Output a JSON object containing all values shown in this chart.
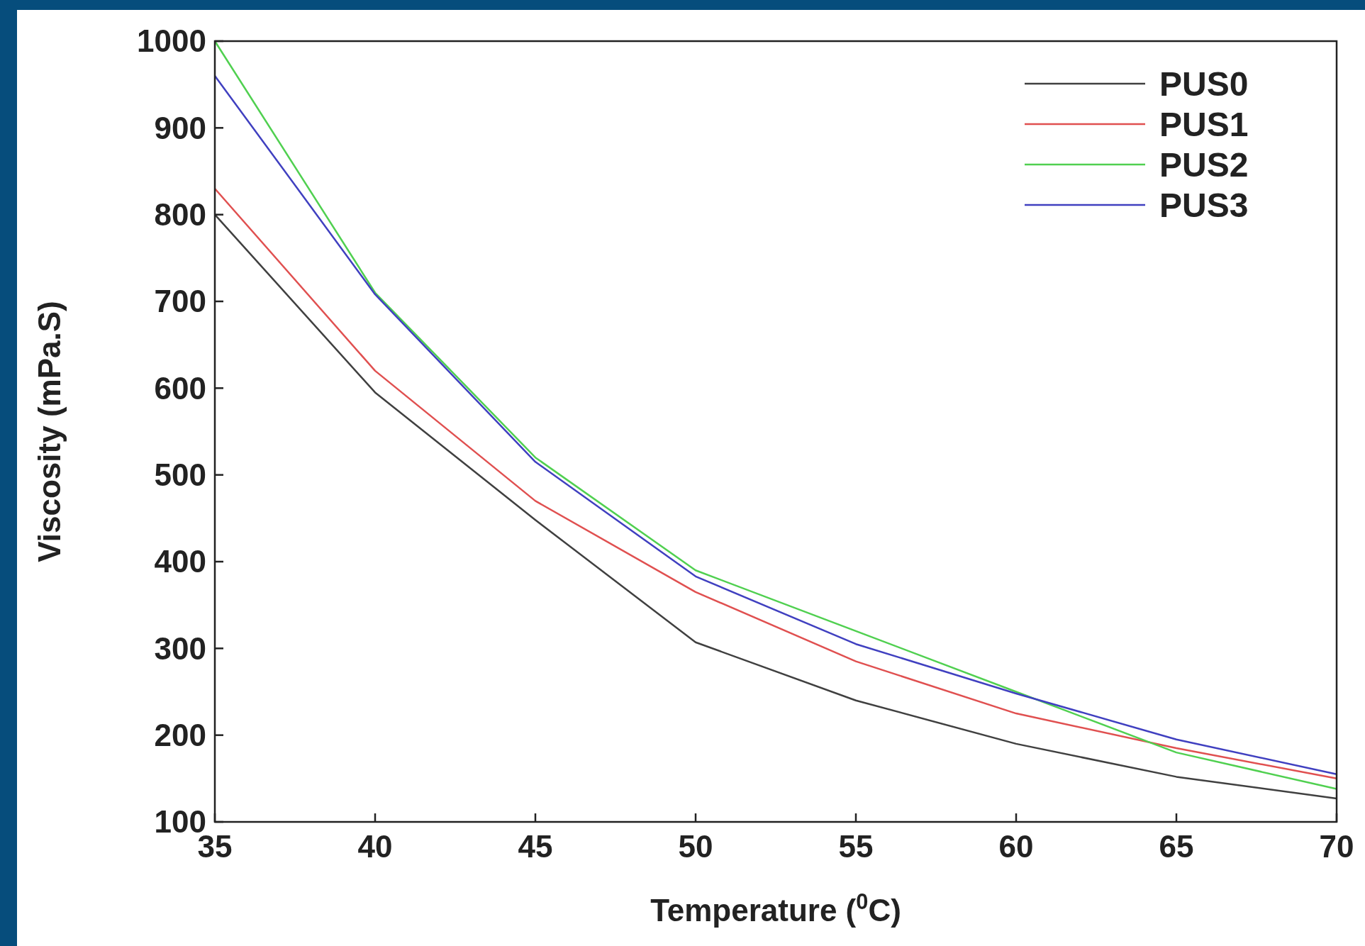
{
  "chart_data": {
    "type": "line",
    "xlabel": "Temperature ($^{0}$C)",
    "ylabel": "Viscosity (mPa.S)",
    "x": [
      35,
      40,
      45,
      50,
      55,
      60,
      65,
      70
    ],
    "series": [
      {
        "name": "PUS0",
        "color": "#404040",
        "values": [
          800,
          595,
          448,
          307,
          240,
          190,
          152,
          127
        ]
      },
      {
        "name": "PUS1",
        "color": "#e05050",
        "values": [
          830,
          620,
          470,
          365,
          285,
          225,
          185,
          150
        ]
      },
      {
        "name": "PUS2",
        "color": "#50d050",
        "values": [
          1000,
          710,
          520,
          390,
          320,
          250,
          180,
          138
        ]
      },
      {
        "name": "PUS3",
        "color": "#4040c0",
        "values": [
          960,
          708,
          515,
          383,
          305,
          248,
          195,
          155
        ]
      }
    ],
    "xlim": [
      35,
      70
    ],
    "xticks": [
      35,
      40,
      45,
      50,
      55,
      60,
      65,
      70
    ],
    "ylim": [
      100,
      1000
    ],
    "yticks": [
      100,
      200,
      300,
      400,
      500,
      600,
      700,
      800,
      900,
      1000
    ],
    "grid": false,
    "legend": "top right",
    "marker": "none",
    "line_style": "solid"
  }
}
